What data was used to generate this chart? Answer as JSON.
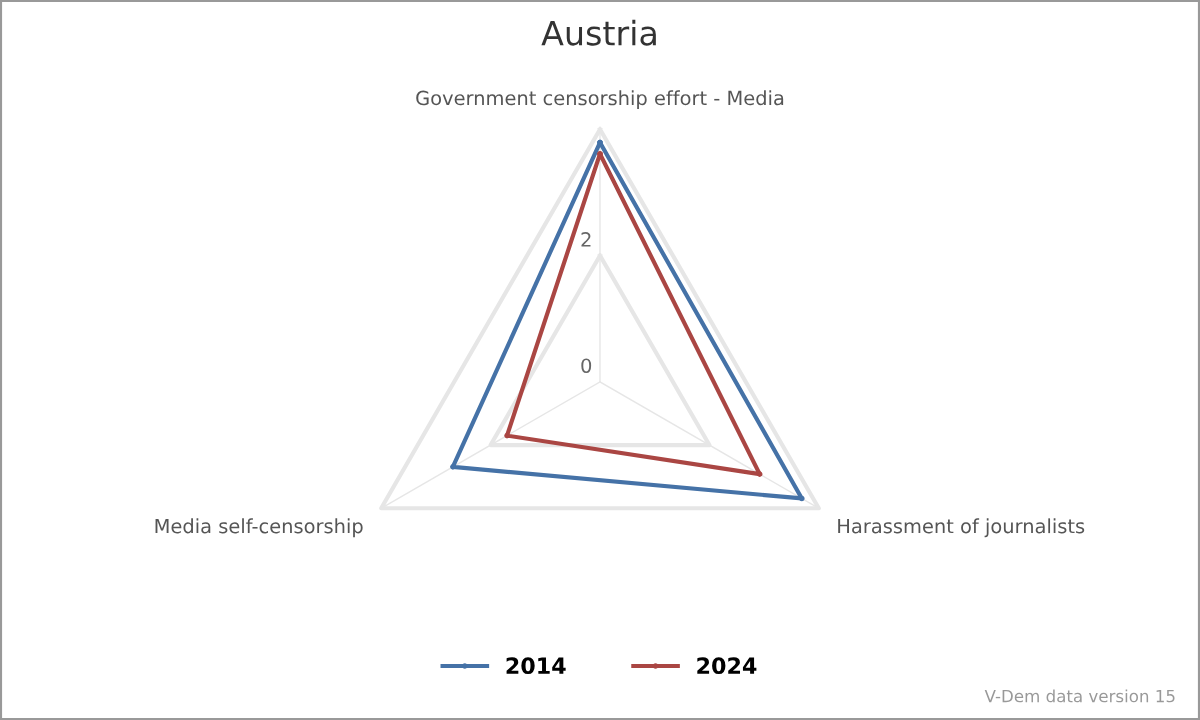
{
  "chart_data": {
    "type": "radar",
    "title": "Austria",
    "categories": [
      "Government censorship effort - Media",
      "Harassment of journalists",
      "Media self-censorship"
    ],
    "series": [
      {
        "name": "2014",
        "color": "#4572a7",
        "values": [
          3.79,
          3.69,
          2.69
        ]
      },
      {
        "name": "2024",
        "color": "#aa4643",
        "values": [
          3.61,
          2.92,
          1.7
        ]
      }
    ],
    "ylim": [
      0,
      4
    ],
    "yticks": [
      0,
      2
    ],
    "grid": true,
    "legend": "bottom",
    "marker": "circle",
    "annotations": [
      "V-Dem data version 15"
    ]
  }
}
